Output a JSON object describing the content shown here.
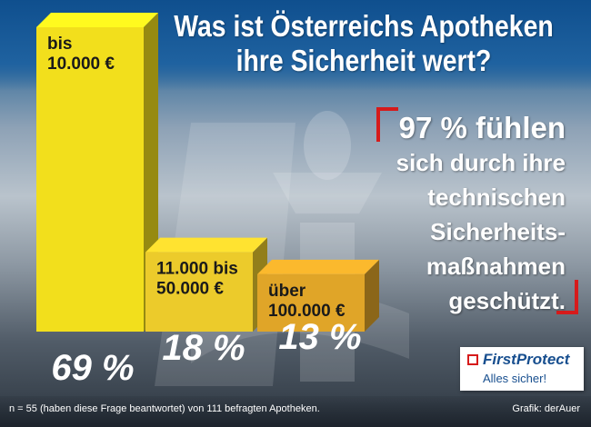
{
  "title": "Was ist Österreichs Apotheken ihre Sicherheit wert?",
  "title_lines": [
    "Was ist Österreichs Apotheken",
    "ihre Sicherheit wert?"
  ],
  "chart_data": {
    "type": "bar",
    "title": "Was ist Österreichs Apotheken ihre Sicherheit wert?",
    "categories": [
      [
        "bis",
        "10.000 €"
      ],
      [
        "11.000 bis",
        "50.000 €"
      ],
      [
        "über",
        "100.000 €"
      ]
    ],
    "values": [
      69,
      18,
      13
    ],
    "value_labels": [
      "69 %",
      "18 %",
      "13 %"
    ],
    "unit": "%",
    "ylim": [
      0,
      69
    ],
    "colors": [
      "#f2df1c",
      "#eccb2b",
      "#e0a528"
    ],
    "grid": false,
    "legend": "none"
  },
  "callout": {
    "lines": [
      "97 % fühlen",
      "sich durch ihre",
      "technischen",
      "Sicherheits-",
      "maßnahmen",
      "geschützt."
    ],
    "accent_color": "#d61b1b"
  },
  "brand": {
    "name": "FirstProtect",
    "tagline": "Alles sicher!",
    "icon": "dashed-square-icon"
  },
  "footnote": "n = 55 (haben diese Frage beantwortet) von 111 befragten Apotheken.",
  "credit": "Grafik: derAuer"
}
